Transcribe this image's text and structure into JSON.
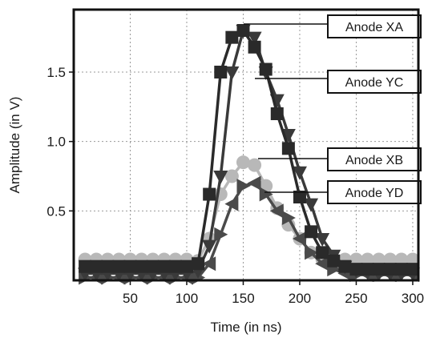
{
  "chart_data": {
    "type": "line",
    "xlabel": "Time (in ns)",
    "ylabel": "Amplitude (in V)",
    "xlim": [
      0,
      305
    ],
    "ylim": [
      0,
      1.95
    ],
    "xticks": [
      50,
      100,
      150,
      200,
      250,
      300
    ],
    "yticks": [
      0.5,
      1.0,
      1.5
    ],
    "tick_labels_x": [
      "50",
      "100",
      "150",
      "200",
      "250",
      "300"
    ],
    "tick_labels_y": [
      "0.5",
      "1.0",
      "1.5"
    ],
    "grid": true,
    "legend_placement": "right, callout labels pointing to each curve",
    "x": [
      10,
      20,
      30,
      40,
      50,
      60,
      70,
      80,
      90,
      100,
      110,
      120,
      130,
      140,
      150,
      160,
      170,
      180,
      190,
      200,
      210,
      220,
      230,
      240,
      250,
      260,
      270,
      280,
      290,
      300
    ],
    "series": [
      {
        "name": "Anode XA",
        "marker": "square",
        "color": "#2a2a2a",
        "values": [
          0.1,
          0.1,
          0.1,
          0.1,
          0.1,
          0.1,
          0.1,
          0.1,
          0.1,
          0.1,
          0.12,
          0.62,
          1.5,
          1.75,
          1.8,
          1.68,
          1.52,
          1.2,
          0.95,
          0.6,
          0.35,
          0.2,
          0.14,
          0.1,
          0.08,
          0.08,
          0.08,
          0.08,
          0.08,
          0.08
        ]
      },
      {
        "name": "Anode YC",
        "marker": "triangle-down",
        "color": "#3a3a3a",
        "values": [
          0.05,
          0.05,
          0.05,
          0.05,
          0.05,
          0.05,
          0.05,
          0.05,
          0.05,
          0.05,
          0.07,
          0.25,
          0.75,
          1.5,
          1.8,
          1.75,
          1.5,
          1.3,
          1.05,
          0.78,
          0.55,
          0.3,
          0.18,
          0.1,
          0.07,
          0.06,
          0.05,
          0.05,
          0.05,
          0.05
        ]
      },
      {
        "name": "Anode XB",
        "marker": "circle",
        "color": "#b8b8b8",
        "values": [
          0.15,
          0.15,
          0.15,
          0.15,
          0.15,
          0.15,
          0.15,
          0.15,
          0.15,
          0.15,
          0.14,
          0.3,
          0.62,
          0.75,
          0.85,
          0.83,
          0.68,
          0.52,
          0.4,
          0.3,
          0.2,
          0.15,
          0.14,
          0.15,
          0.15,
          0.15,
          0.15,
          0.15,
          0.15,
          0.15
        ]
      },
      {
        "name": "Anode YD",
        "marker": "triangle-sideways",
        "color": "#4a4a4a",
        "values": [
          0.02,
          0.02,
          0.02,
          0.02,
          0.02,
          0.02,
          0.02,
          0.02,
          0.02,
          0.02,
          0.02,
          0.12,
          0.33,
          0.55,
          0.68,
          0.7,
          0.62,
          0.5,
          0.45,
          0.3,
          0.2,
          0.12,
          0.08,
          0.05,
          0.04,
          0.04,
          0.04,
          0.04,
          0.04,
          0.04
        ]
      }
    ]
  }
}
